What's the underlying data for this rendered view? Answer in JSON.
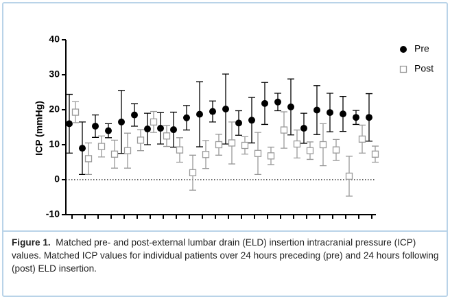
{
  "chart_data": {
    "type": "errorbar",
    "y_label": "ICP (mmHg)",
    "categories": [
      null,
      null,
      null,
      null,
      null,
      null,
      null,
      null,
      null,
      null,
      null,
      null,
      null,
      null,
      null,
      null,
      null,
      null,
      null,
      null,
      null,
      null,
      null,
      null
    ],
    "series": [
      {
        "name": "Pre",
        "color": "#000000",
        "marker": "circle",
        "values": [
          16,
          9,
          15.3,
          14,
          16.5,
          18.5,
          14.5,
          14.7,
          14.3,
          17.7,
          18.7,
          19.5,
          20.2,
          16.2,
          17,
          21.8,
          22.2,
          20.8,
          14.7,
          19.9,
          19.2,
          18.8,
          17.8,
          17.8
        ],
        "errors": [
          8.4,
          7.5,
          3.2,
          2,
          9,
          3.2,
          4.5,
          4.5,
          5,
          3.5,
          9.3,
          3,
          10,
          3.5,
          6.5,
          6,
          2.5,
          8,
          4.3,
          7,
          5.5,
          5,
          2,
          6.8
        ]
      },
      {
        "name": "Post",
        "color": "#999999",
        "marker": "square",
        "values": [
          19.3,
          6,
          9.5,
          7.3,
          8.3,
          11.3,
          16.5,
          12.5,
          8.5,
          2,
          7.2,
          10,
          10.5,
          9.8,
          7.5,
          6.8,
          14.2,
          10.2,
          8.3,
          10,
          8.5,
          1,
          11.6,
          7.3
        ],
        "errors": [
          3,
          4.5,
          3,
          4,
          5,
          3,
          3,
          3,
          3.5,
          5,
          4,
          3,
          6,
          2.5,
          6,
          2.5,
          5.2,
          4,
          2.5,
          6,
          3,
          5.7,
          4,
          2.3
        ]
      }
    ],
    "ylim": [
      -10,
      40
    ],
    "yticks": [
      -10,
      0,
      10,
      20,
      30,
      40
    ],
    "reference_line": 0,
    "legend": "right",
    "caption_label": "Figure 1.",
    "caption": "Matched pre- and post-external lumbar drain (ELD) insertion intracranial pressure (ICP) values. Matched ICP values for individual patients over 24 hours preceding (pre) and 24 hours following (post) ELD insertion."
  }
}
